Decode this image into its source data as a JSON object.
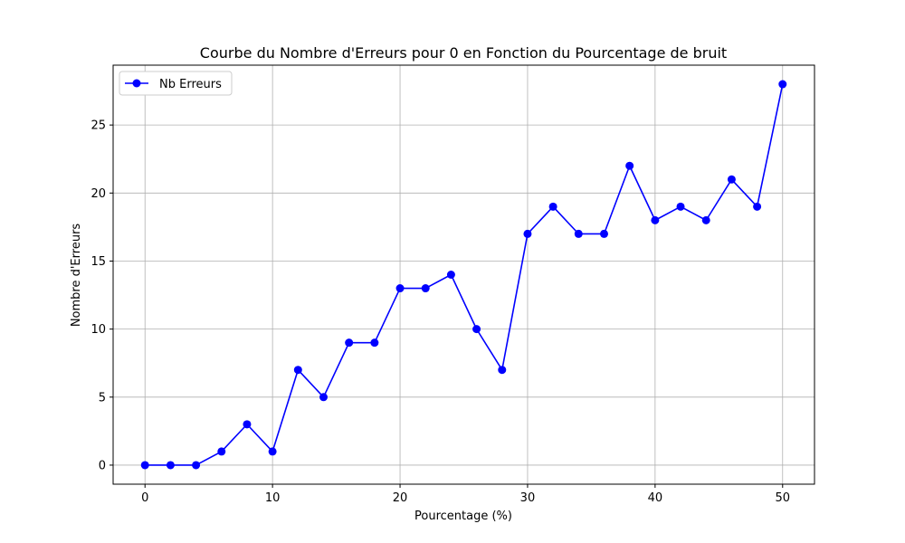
{
  "chart_data": {
    "type": "line",
    "title": "Courbe du Nombre d'Erreurs pour 0 en Fonction du Pourcentage de bruit",
    "xlabel": "Pourcentage (%)",
    "ylabel": "Nombre d'Erreurs",
    "xlim": [
      -2.5,
      52.5
    ],
    "ylim": [
      -1.4,
      29.4
    ],
    "xticks": [
      0,
      10,
      20,
      30,
      40,
      50
    ],
    "yticks": [
      0,
      5,
      10,
      15,
      20,
      25
    ],
    "grid": true,
    "legend_position": "top-left",
    "series": [
      {
        "name": "Nb Erreurs",
        "color": "#0000ff",
        "marker": "circle",
        "x": [
          0,
          2,
          4,
          6,
          8,
          10,
          12,
          14,
          16,
          18,
          20,
          22,
          24,
          26,
          28,
          30,
          32,
          34,
          36,
          38,
          40,
          42,
          44,
          46,
          48,
          50
        ],
        "y": [
          0,
          0,
          0,
          1,
          3,
          1,
          7,
          5,
          9,
          9,
          13,
          13,
          14,
          10,
          7,
          17,
          19,
          17,
          17,
          22,
          18,
          19,
          18,
          21,
          19,
          28
        ]
      }
    ]
  }
}
